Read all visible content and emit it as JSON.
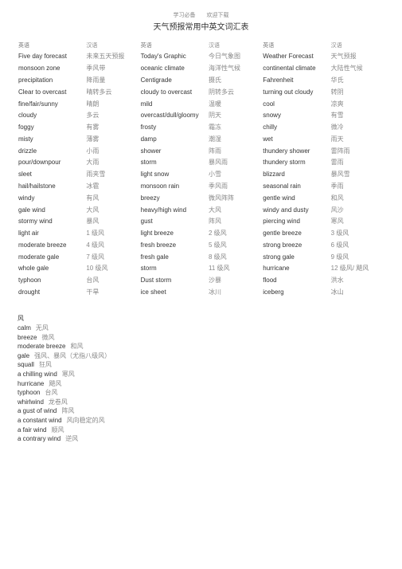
{
  "header": {
    "top": "学习必备  欢迎下载",
    "title": "天气预报常用中英文词汇表"
  },
  "table": {
    "headers": [
      "英语",
      "汉语",
      "英语",
      "汉语",
      "英语",
      "汉语"
    ],
    "rows": [
      [
        "Five day forecast",
        "未来五天预报",
        "Today's Graphic",
        "今日气象图",
        "Weather Forecast",
        "天气预报"
      ],
      [
        "monsoon zone",
        "季风带",
        "oceanic climate",
        "海洋性气候",
        "continental climate",
        "大陆性气候"
      ],
      [
        "precipitation",
        "降雨量",
        "Centigrade",
        "摄氏",
        "Fahrenheit",
        "华氏"
      ],
      [
        "Clear to overcast",
        "晴转多云",
        "cloudy to overcast",
        "阴转多云",
        "turning out cloudy",
        "转阴"
      ],
      [
        "fine/fair/sunny",
        "晴朗",
        "mild",
        "温暖",
        "cool",
        "凉爽"
      ],
      [
        "cloudy",
        "多云",
        "overcast/dull/gloomy",
        "阴天",
        "snowy",
        "有雪"
      ],
      [
        "foggy",
        "有雾",
        "frosty",
        "霜冻",
        "chilly",
        "微冷"
      ],
      [
        "misty",
        "薄雾",
        "damp",
        "潮湿",
        "wet",
        "雨天"
      ],
      [
        "drizzle",
        "小雨",
        "shower",
        "阵雨",
        "thundery shower",
        "雷阵雨"
      ],
      [
        "pour/downpour",
        "大雨",
        "storm",
        "暴风雨",
        "thundery storm",
        "雷雨"
      ],
      [
        "sleet",
        "雨夹雪",
        "light snow",
        "小雪",
        "blizzard",
        "暴风雪"
      ],
      [
        "hail/hailstone",
        "冰雹",
        "monsoon rain",
        "季风雨",
        "seasonal rain",
        "季雨"
      ],
      [
        "windy",
        "有风",
        "breezy",
        "微风阵阵",
        "gentle wind",
        "和风"
      ],
      [
        "gale wind",
        "大风",
        "heavy/high wind",
        "大风",
        "windy and dusty",
        "风沙"
      ],
      [
        "stormy wind",
        "暴风",
        "gust",
        "阵风",
        "piercing wind",
        "寒风"
      ],
      [
        "light air",
        "1 级风",
        "light breeze",
        "2 级风",
        "gentle breeze",
        "3 级风"
      ],
      [
        "moderate breeze",
        "4 级风",
        "fresh breeze",
        "5 级风",
        "strong breeze",
        "6 级风"
      ],
      [
        "moderate gale",
        "7 级风",
        "fresh gale",
        "8 级风",
        "strong gale",
        "9 级风"
      ],
      [
        "whole gale",
        "10 级风",
        "storm",
        "11 级风",
        "hurricane",
        "12 级风/ 飓风"
      ],
      [
        "typhoon",
        "台风",
        "Dust storm",
        "沙暴",
        "flood",
        "洪水"
      ],
      [
        "drought",
        "干旱",
        "ice sheet",
        "冰川",
        "iceberg",
        "冰山"
      ]
    ]
  },
  "wind_section": {
    "title": "风",
    "items": [
      {
        "en": "calm",
        "cn": "无风"
      },
      {
        "en": "breeze",
        "cn": "微风"
      },
      {
        "en": "moderate breeze",
        "cn": "和风"
      },
      {
        "en": "gale",
        "cn": "强风、暴风（尤指八级风）"
      },
      {
        "en": "squall",
        "cn": "狂风"
      },
      {
        "en": "a chilling wind",
        "cn": "寒风"
      },
      {
        "en": "hurricane",
        "cn": "飓风"
      },
      {
        "en": "typhoon",
        "cn": "台风"
      },
      {
        "en": "whirlwind",
        "cn": "龙卷风"
      },
      {
        "en": "a gust of wind",
        "cn": "阵风"
      },
      {
        "en": "a constant wind",
        "cn": "风向稳定的风"
      },
      {
        "en": "a fair wind",
        "cn": "顺风"
      },
      {
        "en": "a contrary wind",
        "cn": "逆风"
      }
    ]
  }
}
